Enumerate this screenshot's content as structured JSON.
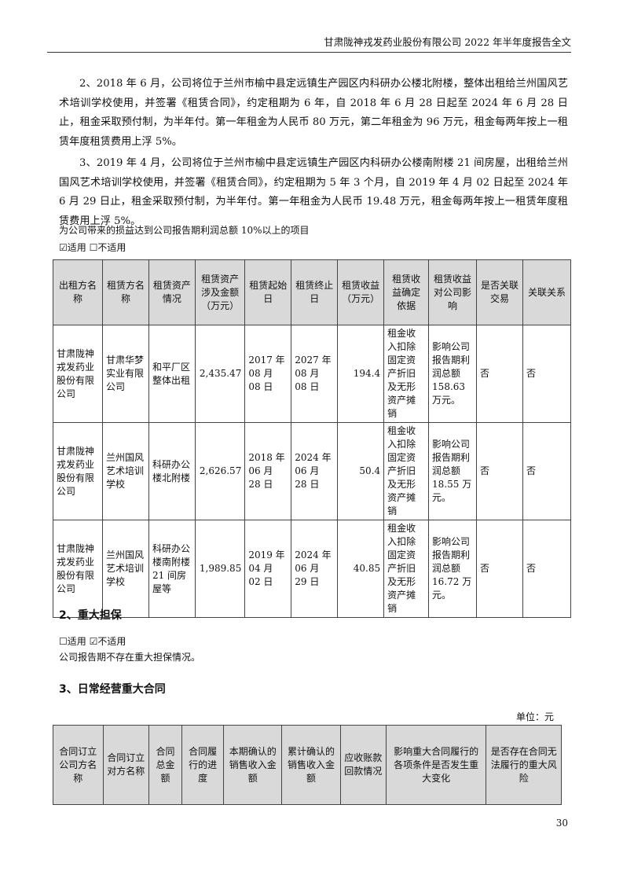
{
  "header": {
    "title": "甘肃陇神戎发药业股份有限公司 2022 年半年度报告全文"
  },
  "paragraphs": [
    "2、2018 年 6 月，公司将位于兰州市榆中县定远镇生产园区内科研办公楼北附楼，整体出租给兰州国风艺术培训学校使用，并签署《租赁合同》，约定租期为 6 年，自 2018 年 6 月 28 日起至 2024 年 6 月 28 日止，租金采取预付制，为半年付。第一年租金为人民币 80 万元，第二年租金为 96 万元，租金每两年按上一租赁年度租赁费用上浮 5%。",
    "3、2019 年 4 月，公司将位于兰州市榆中县定远镇生产园区内科研办公楼南附楼 21 间房屋，出租给兰州国风艺术培训学校使用，并签署《租赁合同》，约定租期为 5 年 3 个月，自 2019 年 4 月 02 日起至 2024 年 6 月 29 日止，租金采取预付制，为半年付。第一年租金为人民币 19.48 万元，租金每两年按上一租赁年度租赁费用上浮 5%。"
  ],
  "lease_section": {
    "note": "为公司带来的损益达到公司报告期利润总额 10%以上的项目",
    "applicable": "☑适用  ☐不适用",
    "columns": [
      "出租方名称",
      "租赁方名称",
      "租赁资产情况",
      "租赁资产涉及金额（万元）",
      "租赁起始日",
      "租赁终止日",
      "租赁收益（万元）",
      "租赁收益确定依据",
      "租赁收益对公司影响",
      "是否关联交易",
      "关联关系"
    ],
    "rows": [
      [
        "甘肃陇神戎发药业股份有限公司",
        "甘肃华梦实业有限公司",
        "和平厂区整体出租",
        "2,435.47",
        "2017 年 08 月 08 日",
        "2027 年 08 月 08 日",
        "194.4",
        "租金收入扣除固定资产折旧及无形资产摊销",
        "影响公司报告期利润总额 158.63 万元。",
        "否",
        "否"
      ],
      [
        "甘肃陇神戎发药业股份有限公司",
        "兰州国风艺术培训学校",
        "科研办公楼北附楼",
        "2,626.57",
        "2018 年 06 月 28 日",
        "2024 年 06 月 28 日",
        "50.4",
        "租金收入扣除固定资产折旧及无形资产摊销",
        "影响公司报告期利润总额 18.55 万元。",
        "否",
        "否"
      ],
      [
        "甘肃陇神戎发药业股份有限公司",
        "兰州国风艺术培训学校",
        "科研办公楼南附楼 21 间房屋等",
        "1,989.85",
        "2019 年 04 月 02 日",
        "2024 年 06 月 29 日",
        "40.85",
        "租金收入扣除固定资产折旧及无形资产摊销",
        "影响公司报告期利润总额 16.72 万元。",
        "否",
        "否"
      ]
    ]
  },
  "guarantee": {
    "heading": "2、重大担保",
    "applicable": "☐适用  ☑不适用",
    "text": "公司报告期不存在重大担保情况。"
  },
  "contracts": {
    "heading": "3、日常经营重大合同",
    "unit": "单位：元",
    "columns": [
      "合同订立公司方名称",
      "合同订立对方名称",
      "合同总金额",
      "合同履行的进度",
      "本期确认的销售收入金额",
      "累计确认的销售收入金额",
      "应收账款回款情况",
      "影响重大合同履行的各项条件是否发生重大变化",
      "是否存在合同无法履行的重大风险"
    ]
  },
  "page_number": "30"
}
